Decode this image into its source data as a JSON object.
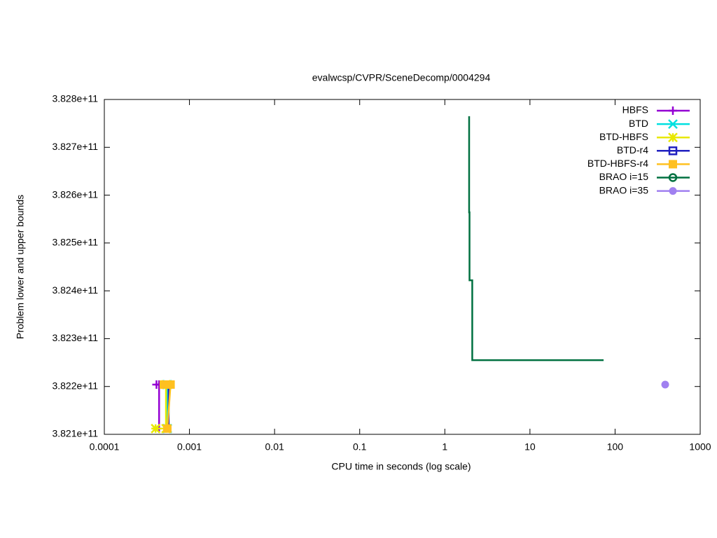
{
  "chart_data": {
    "type": "line",
    "title": "evalwcsp/CVPR/SceneDecomp/0004294",
    "xlabel": "CPU time in seconds (log scale)",
    "ylabel": "Problem lower and upper bounds",
    "xscale": "log",
    "xlim": [
      0.0001,
      1000
    ],
    "xticks": [
      0.0001,
      0.001,
      0.01,
      0.1,
      1,
      10,
      100,
      1000
    ],
    "ylim": [
      382100000000,
      382800000000
    ],
    "yticks": [
      {
        "value": 382100000000,
        "label": "3.821e+11"
      },
      {
        "value": 382200000000,
        "label": "3.822e+11"
      },
      {
        "value": 382300000000,
        "label": "3.823e+11"
      },
      {
        "value": 382400000000,
        "label": "3.824e+11"
      },
      {
        "value": 382500000000,
        "label": "3.825e+11"
      },
      {
        "value": 382600000000,
        "label": "3.826e+11"
      },
      {
        "value": 382700000000,
        "label": "3.827e+11"
      },
      {
        "value": 382800000000,
        "label": "3.828e+11"
      }
    ],
    "legend": "top-right",
    "series": [
      {
        "name": "HBFS",
        "color": "#9400d3",
        "marker": "plus",
        "show_points": true,
        "x": [
          0.00041,
          0.00044,
          0.00044
        ],
        "values": [
          382204000000,
          382204000000,
          382112000000
        ]
      },
      {
        "name": "BTD",
        "color": "#00e0e0",
        "marker": "cross",
        "show_points": true,
        "x": [
          0.00055,
          0.00055
        ],
        "values": [
          382204000000,
          382112000000
        ]
      },
      {
        "name": "BTD-HBFS",
        "color": "#e8e800",
        "marker": "star",
        "show_points": true,
        "x": [
          0.0004,
          0.00053,
          0.00053
        ],
        "values": [
          382112000000,
          382112000000,
          382204000000
        ]
      },
      {
        "name": "BTD-r4",
        "color": "#2020c0",
        "marker": "square",
        "show_points": false,
        "x": [
          0.00057,
          0.00057
        ],
        "values": [
          382204000000,
          382112000000
        ]
      },
      {
        "name": "BTD-HBFS-r4",
        "color": "#ffc020",
        "marker": "filled-square",
        "show_points": true,
        "x": [
          0.0005,
          0.00055,
          0.0006,
          0.00055
        ],
        "values": [
          382204000000,
          382204000000,
          382204000000,
          382112000000
        ]
      },
      {
        "name": "BRAO i=15",
        "color": "#007040",
        "marker": "circle",
        "show_points": false,
        "x": [
          1.93,
          1.93,
          1.95,
          1.95,
          2.1,
          2.1,
          73.3
        ],
        "values": [
          382765000000,
          382564000000,
          382564000000,
          382422000000,
          382422000000,
          382255000000,
          382255000000
        ]
      },
      {
        "name": "BRAO i=35",
        "color": "#a080f0",
        "marker": "filled-circle",
        "show_points": true,
        "x": [
          388
        ],
        "values": [
          382204000000
        ]
      }
    ]
  }
}
